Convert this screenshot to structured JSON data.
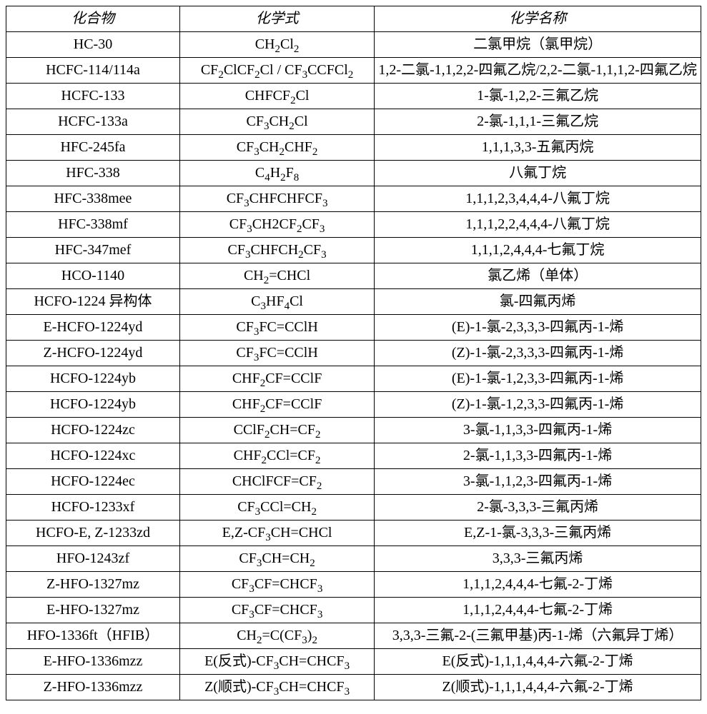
{
  "table": {
    "columns": [
      "化合物",
      "化学式",
      "化学名称"
    ],
    "rows": [
      {
        "compound": "HC-30",
        "formula": "CH<sub>2</sub>Cl<sub>2</sub>",
        "name": "二氯甲烷（氯甲烷）"
      },
      {
        "compound": "HCFC-114/114a",
        "formula": "CF<sub>2</sub>ClCF<sub>2</sub>Cl / CF<sub>3</sub>CCFCl<sub>2</sub>",
        "name": "1,2-二氯-1,1,2,2-四氟乙烷/2,2-二氯-1,1,1,2-四氟乙烷"
      },
      {
        "compound": "HCFC-133",
        "formula": "CHFCF<sub>2</sub>Cl",
        "name": "1-氯-1,2,2-三氟乙烷"
      },
      {
        "compound": "HCFC-133a",
        "formula": "CF<sub>3</sub>CH<sub>2</sub>Cl",
        "name": "2-氯-1,1,1-三氟乙烷"
      },
      {
        "compound": "HFC-245fa",
        "formula": "CF<sub>3</sub>CH<sub>2</sub>CHF<sub>2</sub>",
        "name": "1,1,1,3,3-五氟丙烷"
      },
      {
        "compound": "HFC-338",
        "formula": "C<sub>4</sub>H<sub>2</sub>F<sub>8</sub>",
        "name": "八氟丁烷"
      },
      {
        "compound": "HFC-338mee",
        "formula": "CF<sub>3</sub>CHFCHFCF<sub>3</sub>",
        "name": "1,1,1,2,3,4,4,4-八氟丁烷"
      },
      {
        "compound": "HFC-338mf",
        "formula": "CF<sub>3</sub>CH2CF<sub>2</sub>CF<sub>3</sub>",
        "name": "1,1,1,2,2,4,4,4-八氟丁烷"
      },
      {
        "compound": "HFC-347mef",
        "formula": "CF<sub>3</sub>CHFCH<sub>2</sub>CF<sub>3</sub>",
        "name": "1,1,1,2,4,4,4-七氟丁烷"
      },
      {
        "compound": "HCO-1140",
        "formula": "CH<sub>2</sub>=CHCl",
        "name": "氯乙烯（单体）"
      },
      {
        "compound": "HCFO-1224 异构体",
        "formula": "C<sub>3</sub>HF<sub>4</sub>Cl",
        "name": "氯-四氟丙烯"
      },
      {
        "compound": "E-HCFO-1224yd",
        "formula": "CF<sub>3</sub>FC=CClH",
        "name": "(E)-1-氯-2,3,3,3-四氟丙-1-烯"
      },
      {
        "compound": "Z-HCFO-1224yd",
        "formula": "CF<sub>3</sub>FC=CClH",
        "name": "(Z)-1-氯-2,3,3,3-四氟丙-1-烯"
      },
      {
        "compound": "HCFO-1224yb",
        "formula": "CHF<sub>2</sub>CF=CClF",
        "name": "(E)-1-氯-1,2,3,3-四氟丙-1-烯"
      },
      {
        "compound": "HCFO-1224yb",
        "formula": "CHF<sub>2</sub>CF=CClF",
        "name": "(Z)-1-氯-1,2,3,3-四氟丙-1-烯"
      },
      {
        "compound": "HCFO-1224zc",
        "formula": "CClF<sub>2</sub>CH=CF<sub>2</sub>",
        "name": "3-氯-1,1,3,3-四氟丙-1-烯"
      },
      {
        "compound": "HCFO-1224xc",
        "formula": "CHF<sub>2</sub>CCl=CF<sub>2</sub>",
        "name": "2-氯-1,1,3,3-四氟丙-1-烯"
      },
      {
        "compound": "HCFO-1224ec",
        "formula": "CHClFCF=CF<sub>2</sub>",
        "name": "3-氯-1,1,2,3-四氟丙-1-烯"
      },
      {
        "compound": "HCFO-1233xf",
        "formula": "CF<sub>3</sub>CCl=CH<sub>2</sub>",
        "name": "2-氯-3,3,3-三氟丙烯"
      },
      {
        "compound": "HCFO-E, Z-1233zd",
        "formula": "E,Z-CF<sub>3</sub>CH=CHCl",
        "name": "E,Z-1-氯-3,3,3-三氟丙烯"
      },
      {
        "compound": "HFO-1243zf",
        "formula": "CF<sub>3</sub>CH=CH<sub>2</sub>",
        "name": "3,3,3-三氟丙烯"
      },
      {
        "compound": "Z-HFO-1327mz",
        "formula": "CF<sub>3</sub>CF=CHCF<sub>3</sub>",
        "name": "1,1,1,2,4,4,4-七氟-2-丁烯"
      },
      {
        "compound": "E-HFO-1327mz",
        "formula": "CF<sub>3</sub>CF=CHCF<sub>3</sub>",
        "name": "1,1,1,2,4,4,4-七氟-2-丁烯"
      },
      {
        "compound": "HFO-1336ft（HFIB）",
        "formula": "CH<sub>2</sub>=C(CF<sub>3</sub>)<sub>2</sub>",
        "name": "3,3,3-三氟-2-(三氟甲基)丙-1-烯（六氟异丁烯）"
      },
      {
        "compound": "E-HFO-1336mzz",
        "formula": "E(反式)-CF<sub>3</sub>CH=CHCF<sub>3</sub>",
        "name": "E(反式)-1,1,1,4,4,4-六氟-2-丁烯"
      },
      {
        "compound": "Z-HFO-1336mzz",
        "formula": "Z(顺式)-CF<sub>3</sub>CH=CHCF<sub>3</sub>",
        "name": "Z(顺式)-1,1,1,4,4,4-六氟-2-丁烯"
      }
    ]
  },
  "style": {
    "font_family": "Times New Roman / SimSun",
    "font_size_pt": 15,
    "border_color": "#000000",
    "background_color": "#ffffff",
    "text_color": "#000000",
    "col_widths_pct": [
      25,
      28,
      47
    ]
  }
}
